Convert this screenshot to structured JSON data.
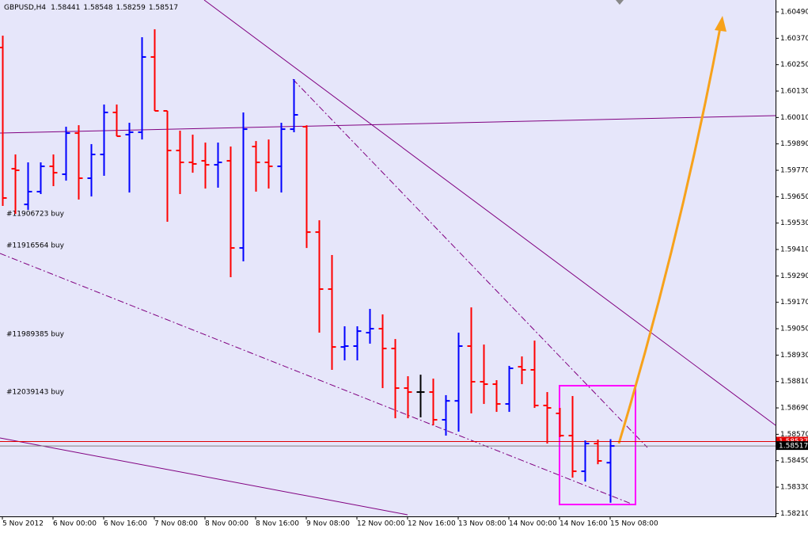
{
  "chart_data": {
    "type": "ohlc",
    "title": "GBPUSD,H4",
    "categories": [
      "5 Nov 2012",
      null,
      null,
      null,
      "6 Nov 00:00",
      null,
      null,
      null,
      "6 Nov 16:00",
      null,
      null,
      null,
      "7 Nov 08:00",
      null,
      null,
      null,
      "8 Nov 00:00",
      null,
      null,
      null,
      "8 Nov 16:00",
      null,
      null,
      null,
      "9 Nov 08:00",
      null,
      null,
      null,
      "12 Nov 00:00",
      null,
      null,
      null,
      "12 Nov 16:00",
      null,
      null,
      null,
      "13 Nov 08:00",
      null,
      null,
      null,
      "14 Nov 00:00",
      null,
      null,
      null,
      "14 Nov 16:00",
      null,
      null,
      null,
      "15 Nov 08:00"
    ],
    "open": [
      1.60328,
      1.59777,
      1.59615,
      1.59673,
      1.59788,
      1.59752,
      1.59939,
      1.59734,
      1.59842,
      1.60033,
      1.59932,
      1.59943,
      1.60285,
      1.6004,
      1.5986,
      1.59806,
      1.59813,
      1.59795,
      1.59813,
      1.59417,
      1.59878,
      1.59806,
      1.59788,
      1.59957,
      1.59968,
      1.59489,
      1.5923,
      1.58967,
      1.58971,
      1.59032,
      1.5905,
      1.5896,
      1.5878,
      1.58762,
      1.58762,
      1.58636,
      1.58722,
      1.58971,
      1.58809,
      1.58798,
      1.58708,
      1.58877,
      1.58863,
      1.58701,
      1.58665,
      1.58564,
      1.58402,
      1.58528,
      1.58441
    ],
    "high": [
      1.60382,
      1.59842,
      1.59806,
      1.59806,
      1.59842,
      1.59968,
      1.59975,
      1.59889,
      1.60069,
      1.60069,
      1.59986,
      1.60375,
      1.60411,
      1.6004,
      1.5995,
      1.59932,
      1.59896,
      1.59896,
      1.59878,
      1.60033,
      1.59903,
      1.5991,
      1.59986,
      1.60184,
      1.59975,
      1.59543,
      1.59385,
      1.59061,
      1.59061,
      1.5914,
      1.59115,
      1.59003,
      1.58834,
      1.58841,
      1.58823,
      1.58748,
      1.59032,
      1.59147,
      1.58978,
      1.58816,
      1.58881,
      1.58924,
      1.58996,
      1.58762,
      1.5869,
      1.58744,
      1.58542,
      1.58546,
      1.58548
    ],
    "low": [
      1.59608,
      1.59572,
      1.5959,
      1.59662,
      1.59698,
      1.59723,
      1.59637,
      1.59651,
      1.59745,
      1.59925,
      1.59669,
      1.5991,
      1.6004,
      1.59536,
      1.59662,
      1.59759,
      1.59687,
      1.59691,
      1.59284,
      1.59356,
      1.59673,
      1.59687,
      1.59669,
      1.59943,
      1.59417,
      1.59032,
      1.58863,
      1.58906,
      1.58906,
      1.58982,
      1.5878,
      1.58643,
      1.58643,
      1.58647,
      1.58611,
      1.58564,
      1.58582,
      1.58665,
      1.58708,
      1.58672,
      1.58672,
      1.58798,
      1.5869,
      1.58528,
      1.58557,
      1.58373,
      1.58355,
      1.58434,
      1.58259
    ],
    "close": [
      1.59644,
      1.5977,
      1.59673,
      1.59788,
      1.59759,
      1.59939,
      1.59734,
      1.59842,
      1.60033,
      1.59925,
      1.59943,
      1.60285,
      1.6004,
      1.5986,
      1.59806,
      1.59799,
      1.59795,
      1.59806,
      1.59417,
      1.59957,
      1.59806,
      1.59788,
      1.59957,
      1.60022,
      1.59489,
      1.5923,
      1.58967,
      1.58971,
      1.59039,
      1.5905,
      1.5896,
      1.5878,
      1.58762,
      1.58762,
      1.58636,
      1.58722,
      1.58971,
      1.58809,
      1.58798,
      1.58708,
      1.5887,
      1.58863,
      1.58701,
      1.5869,
      1.58564,
      1.58402,
      1.58528,
      1.58449,
      1.58517
    ],
    "up_color": "#0000ff",
    "down_color": "#ff0000",
    "flat_color": "#000000",
    "ask": 1.58537,
    "ylim": [
      1.58197,
      1.60544
    ],
    "yticks": [
      {
        "value": 1.6049,
        "label": "1.60490"
      },
      {
        "value": 1.6037,
        "label": "1.60370"
      },
      {
        "value": 1.6025,
        "label": "1.60250"
      },
      {
        "value": 1.6013,
        "label": "1.60130"
      },
      {
        "value": 1.6001,
        "label": "1.60010"
      },
      {
        "value": 1.5989,
        "label": "1.59890"
      },
      {
        "value": 1.5977,
        "label": "1.59770"
      },
      {
        "value": 1.5965,
        "label": "1.59650"
      },
      {
        "value": 1.5953,
        "label": "1.59530"
      },
      {
        "value": 1.5941,
        "label": "1.59410"
      },
      {
        "value": 1.5929,
        "label": "1.59290"
      },
      {
        "value": 1.5917,
        "label": "1.59170"
      },
      {
        "value": 1.5905,
        "label": "1.59050"
      },
      {
        "value": 1.5893,
        "label": "1.58930"
      },
      {
        "value": 1.5881,
        "label": "1.58810"
      },
      {
        "value": 1.5869,
        "label": "1.58690"
      },
      {
        "value": 1.5857,
        "label": "1.58570"
      },
      {
        "value": 1.5845,
        "label": "1.58450"
      },
      {
        "value": 1.5833,
        "label": "1.58330"
      },
      {
        "value": 1.5821,
        "label": "1.58210"
      }
    ],
    "orders": [
      "#11906723 buy",
      "#11916564 buy",
      "#11989385 buy",
      "#12039143 buy"
    ]
  }
}
